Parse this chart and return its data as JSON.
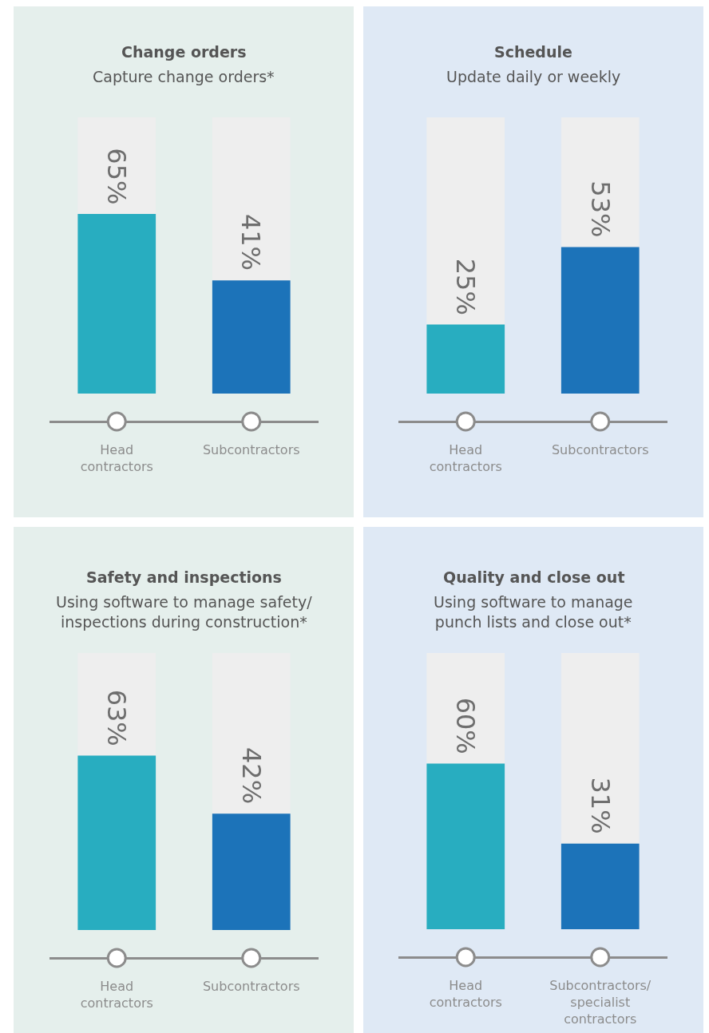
{
  "chart_data": [
    {
      "type": "bar",
      "title": "Change orders",
      "subtitle": "Capture change orders*",
      "categories": [
        "Head\ncontractors",
        "Subcontractors"
      ],
      "values": [
        65,
        41
      ],
      "colors": [
        "#28adc0",
        "#1c73b9"
      ],
      "value_labels": [
        "65%",
        "41%"
      ],
      "ylim": [
        0,
        100
      ],
      "tick_labels": "x"
    },
    {
      "type": "bar",
      "title": "Schedule",
      "subtitle": "Update daily or weekly",
      "categories": [
        "Head\ncontractors",
        "Subcontractors"
      ],
      "values": [
        25,
        53
      ],
      "colors": [
        "#28adc0",
        "#1c73b9"
      ],
      "value_labels": [
        "25%",
        "53%"
      ],
      "ylim": [
        0,
        100
      ],
      "tick_labels": "x"
    },
    {
      "type": "bar",
      "title": "Safety and inspections",
      "subtitle": "Using software to manage safety/\ninspections during construction*",
      "categories": [
        "Head\ncontractors",
        "Subcontractors"
      ],
      "values": [
        63,
        42
      ],
      "colors": [
        "#28adc0",
        "#1c73b9"
      ],
      "value_labels": [
        "63%",
        "42%"
      ],
      "ylim": [
        0,
        100
      ],
      "tick_labels": "x"
    },
    {
      "type": "bar",
      "title": "Quality and close out",
      "subtitle": "Using software to manage\npunch lists and close out*",
      "categories": [
        "Head\ncontractors",
        "Subcontractors/\nspecialist\ncontractors"
      ],
      "values": [
        60,
        31
      ],
      "colors": [
        "#28adc0",
        "#1c73b9"
      ],
      "value_labels": [
        "60%",
        "31%"
      ],
      "ylim": [
        0,
        100
      ],
      "tick_labels": "x"
    }
  ]
}
